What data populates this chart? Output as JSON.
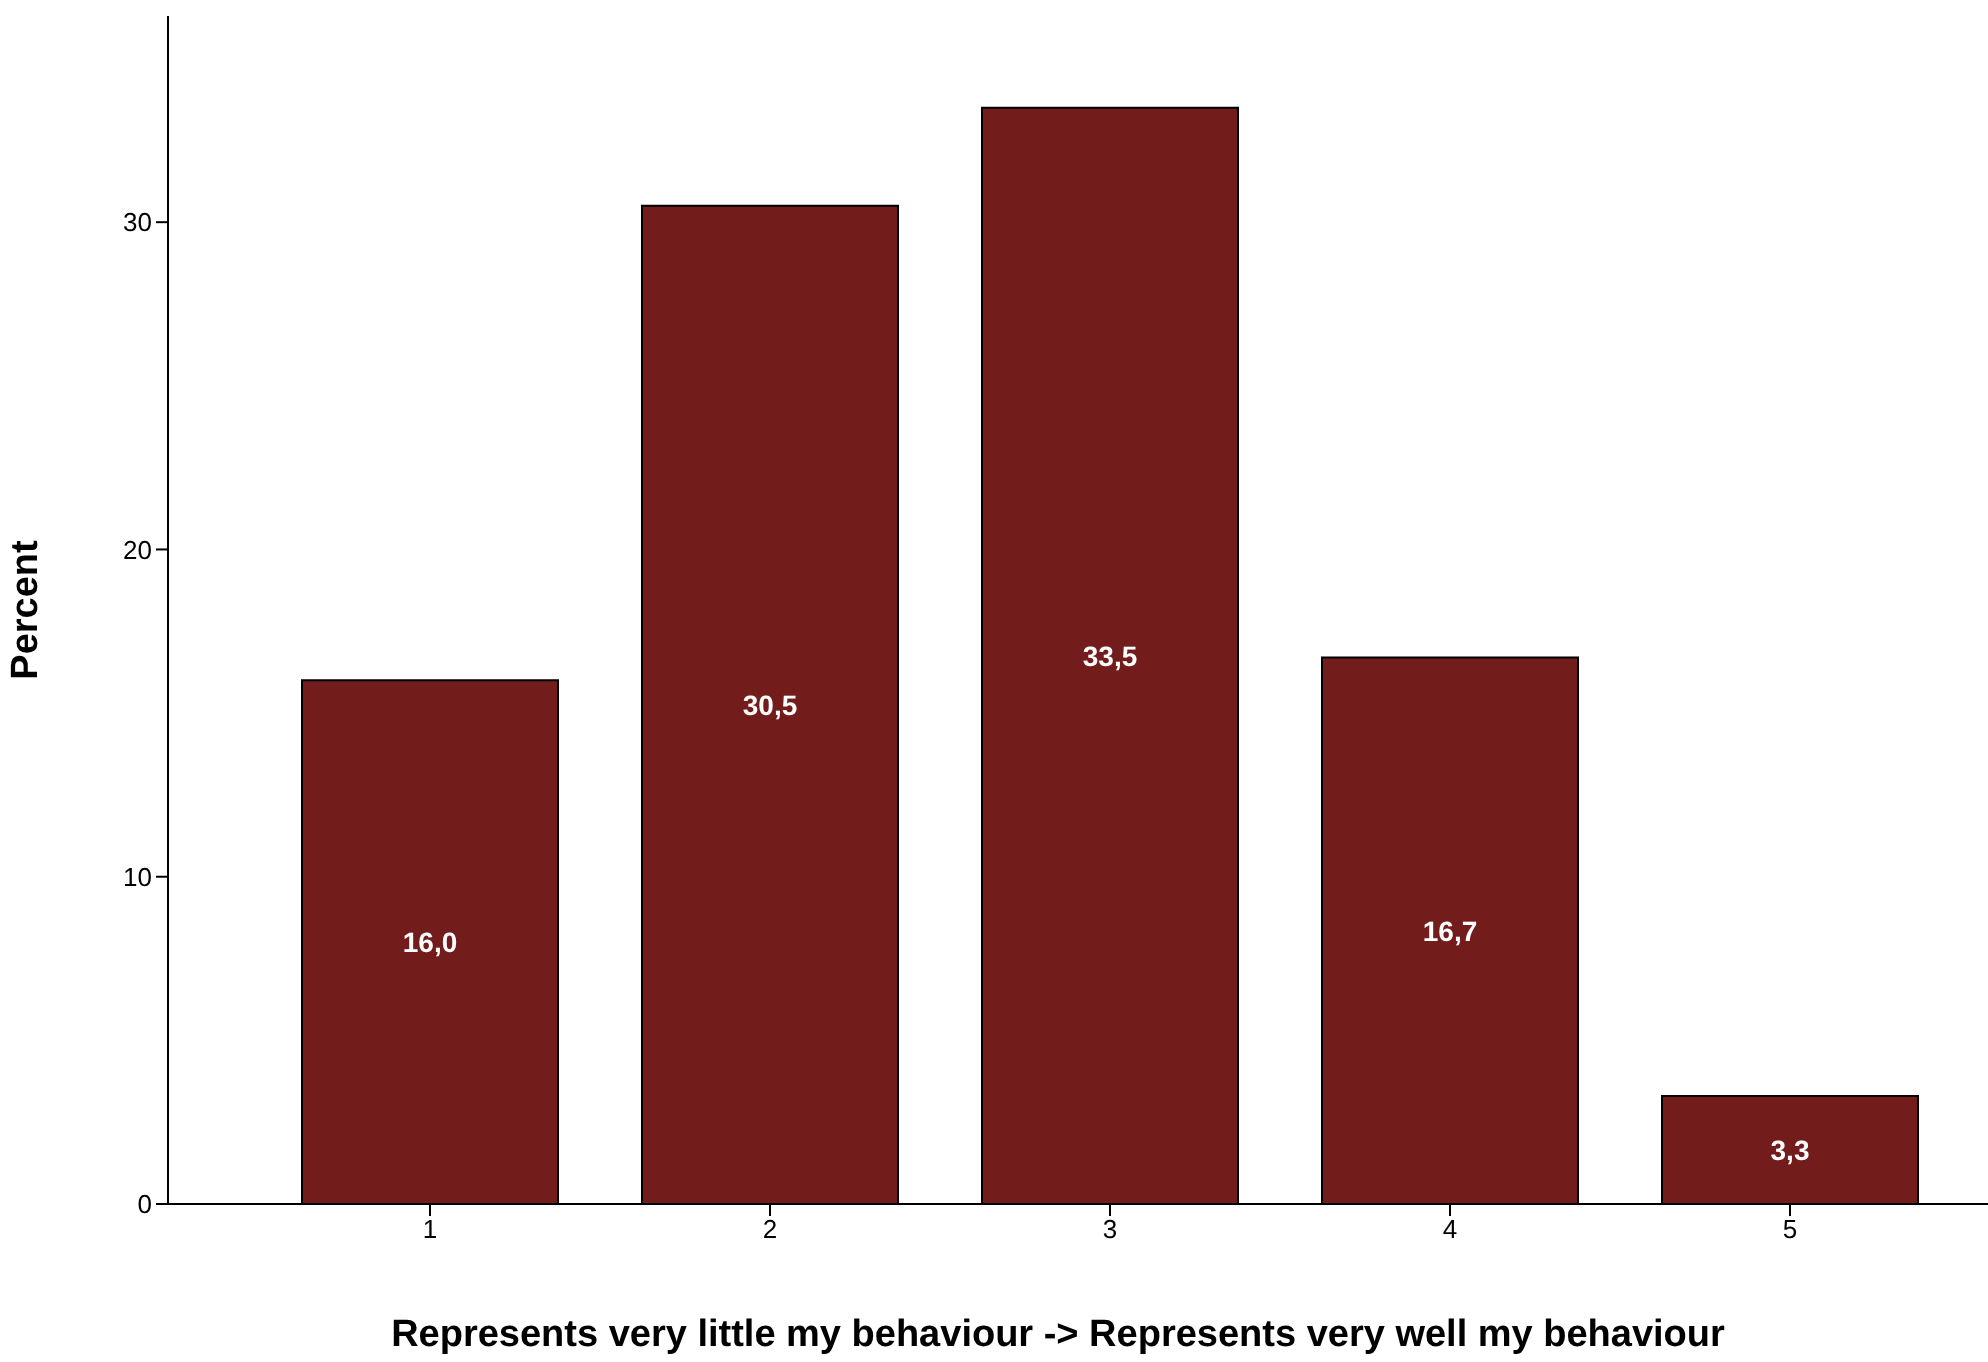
{
  "chart_data": {
    "type": "bar",
    "xlabel": "Represents very little my behaviour -> Represents very well my behaviour",
    "ylabel": "Percent",
    "categories": [
      "1",
      "2",
      "3",
      "4",
      "5"
    ],
    "series": [
      {
        "color": "#721c1c",
        "values": [
          16.0,
          30.5,
          33.5,
          16.7,
          3.3
        ],
        "value_labels": [
          "16,0",
          "30,5",
          "33,5",
          "16,7",
          "3,3"
        ]
      }
    ],
    "ylim": [
      0,
      36.3
    ],
    "yticks": [
      0,
      10,
      20,
      30
    ],
    "grid": false,
    "legend": false
  }
}
